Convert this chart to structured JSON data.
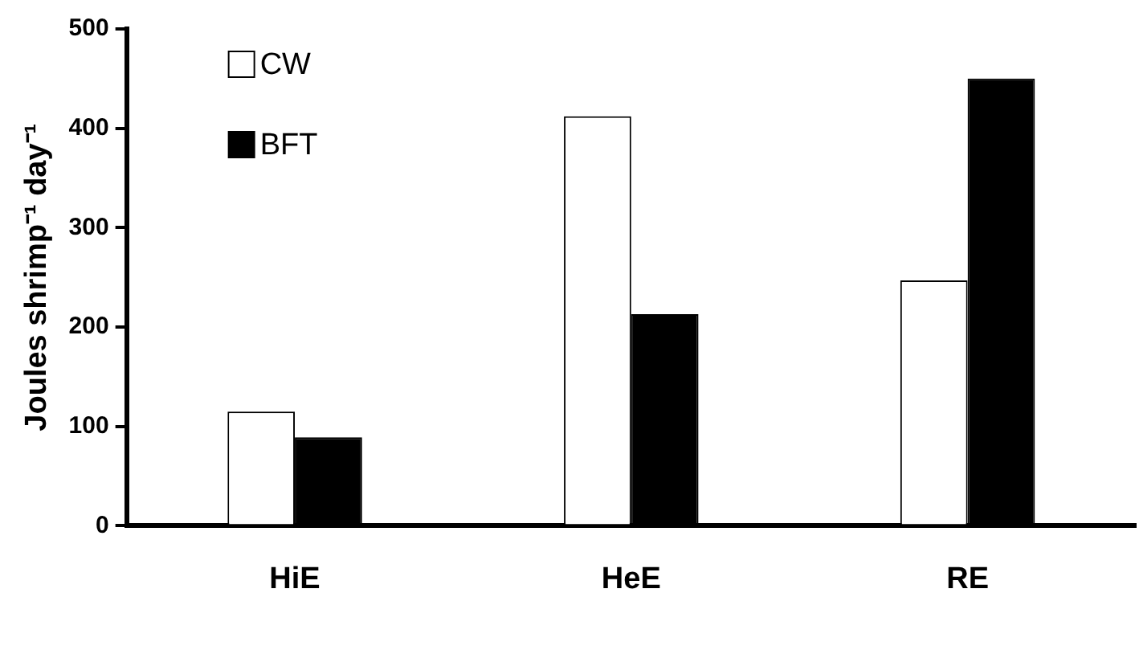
{
  "chart_data": {
    "type": "bar",
    "ylabel": "Joules shrimp⁻¹ day⁻¹",
    "categories": [
      "HiE",
      "HeE",
      "RE"
    ],
    "series": [
      {
        "name": "CW",
        "color": "#ffffff",
        "values": [
          115,
          412,
          247
        ]
      },
      {
        "name": "BFT",
        "color": "#000000",
        "values": [
          89,
          213,
          450
        ]
      }
    ],
    "ylim": [
      0,
      500
    ],
    "yticks": [
      0,
      100,
      200,
      300,
      400,
      500
    ],
    "grid": false,
    "legend": "top left"
  }
}
